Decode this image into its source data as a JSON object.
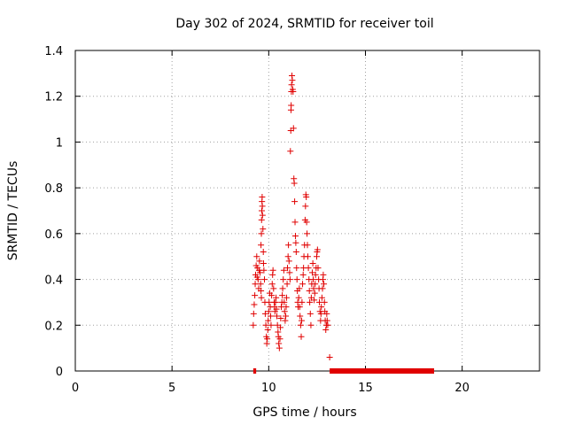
{
  "chart_data": {
    "type": "scatter",
    "title": "Day 302 of 2024, SRMTID for receiver toil",
    "xlabel": "GPS time / hours",
    "ylabel": "SRMTID / TECUs",
    "xlim": [
      0,
      24
    ],
    "ylim": [
      0,
      1.4
    ],
    "xticks": [
      0,
      5,
      10,
      15,
      20
    ],
    "yticks": [
      0,
      0.2,
      0.4,
      0.6,
      0.8,
      1,
      1.2,
      1.4
    ],
    "xtick_labels": [
      "0",
      "5",
      "10",
      "15",
      "20"
    ],
    "ytick_labels": [
      "0",
      "0.2",
      "0.4",
      "0.6",
      "0.8",
      "1",
      "1.2",
      "1.4"
    ],
    "grid": true,
    "marker": "+",
    "color": "#e00000",
    "series": [
      {
        "name": "SRMTID",
        "points": [
          [
            9.2,
            0.2
          ],
          [
            9.22,
            0.25
          ],
          [
            9.25,
            0.29
          ],
          [
            9.28,
            0.33
          ],
          [
            9.3,
            0.38
          ],
          [
            9.32,
            0.42
          ],
          [
            9.35,
            0.46
          ],
          [
            9.38,
            0.5
          ],
          [
            9.4,
            0.41
          ],
          [
            9.42,
            0.45
          ],
          [
            9.45,
            0.4
          ],
          [
            9.48,
            0.36
          ],
          [
            9.5,
            0.44
          ],
          [
            9.52,
            0.48
          ],
          [
            9.55,
            0.43
          ],
          [
            9.58,
            0.38
          ],
          [
            9.6,
            0.35
          ],
          [
            9.62,
            0.32
          ],
          [
            9.6,
            0.55
          ],
          [
            9.62,
            0.6
          ],
          [
            9.63,
            0.66
          ],
          [
            9.64,
            0.7
          ],
          [
            9.65,
            0.74
          ],
          [
            9.66,
            0.76
          ],
          [
            9.67,
            0.72
          ],
          [
            9.68,
            0.68
          ],
          [
            9.7,
            0.62
          ],
          [
            9.72,
            0.52
          ],
          [
            9.73,
            0.47
          ],
          [
            9.75,
            0.44
          ],
          [
            9.78,
            0.4
          ],
          [
            9.8,
            0.3
          ],
          [
            9.82,
            0.25
          ],
          [
            9.85,
            0.2
          ],
          [
            9.88,
            0.15
          ],
          [
            9.9,
            0.12
          ],
          [
            9.92,
            0.14
          ],
          [
            9.95,
            0.18
          ],
          [
            9.97,
            0.22
          ],
          [
            10.0,
            0.26
          ],
          [
            10.02,
            0.3
          ],
          [
            10.05,
            0.34
          ],
          [
            10.08,
            0.28
          ],
          [
            10.1,
            0.24
          ],
          [
            10.12,
            0.2
          ],
          [
            10.15,
            0.33
          ],
          [
            10.18,
            0.38
          ],
          [
            10.2,
            0.42
          ],
          [
            10.22,
            0.44
          ],
          [
            10.25,
            0.36
          ],
          [
            10.28,
            0.3
          ],
          [
            10.3,
            0.28
          ],
          [
            10.32,
            0.26
          ],
          [
            10.35,
            0.3
          ],
          [
            10.38,
            0.32
          ],
          [
            10.4,
            0.27
          ],
          [
            10.42,
            0.24
          ],
          [
            10.45,
            0.2
          ],
          [
            10.48,
            0.17
          ],
          [
            10.5,
            0.15
          ],
          [
            10.52,
            0.12
          ],
          [
            10.55,
            0.1
          ],
          [
            10.58,
            0.14
          ],
          [
            10.6,
            0.19
          ],
          [
            10.62,
            0.23
          ],
          [
            10.65,
            0.28
          ],
          [
            10.68,
            0.3
          ],
          [
            10.7,
            0.33
          ],
          [
            10.72,
            0.36
          ],
          [
            10.75,
            0.4
          ],
          [
            10.78,
            0.44
          ],
          [
            10.8,
            0.3
          ],
          [
            10.82,
            0.26
          ],
          [
            10.85,
            0.22
          ],
          [
            10.88,
            0.24
          ],
          [
            10.9,
            0.28
          ],
          [
            10.92,
            0.32
          ],
          [
            10.95,
            0.38
          ],
          [
            10.97,
            0.45
          ],
          [
            11.0,
            0.5
          ],
          [
            11.02,
            0.55
          ],
          [
            11.05,
            0.48
          ],
          [
            11.08,
            0.43
          ],
          [
            11.1,
            0.4
          ],
          [
            11.12,
            0.96
          ],
          [
            11.14,
            1.05
          ],
          [
            11.15,
            1.14
          ],
          [
            11.16,
            1.16
          ],
          [
            11.17,
            1.22
          ],
          [
            11.18,
            1.25
          ],
          [
            11.2,
            1.29
          ],
          [
            11.22,
            1.27
          ],
          [
            11.24,
            1.23
          ],
          [
            11.26,
            1.22
          ],
          [
            11.28,
            1.06
          ],
          [
            11.3,
            0.84
          ],
          [
            11.32,
            0.82
          ],
          [
            11.34,
            0.74
          ],
          [
            11.36,
            0.65
          ],
          [
            11.38,
            0.59
          ],
          [
            11.4,
            0.56
          ],
          [
            11.42,
            0.52
          ],
          [
            11.44,
            0.45
          ],
          [
            11.46,
            0.4
          ],
          [
            11.48,
            0.35
          ],
          [
            11.5,
            0.3
          ],
          [
            11.52,
            0.28
          ],
          [
            11.55,
            0.32
          ],
          [
            11.58,
            0.36
          ],
          [
            11.6,
            0.28
          ],
          [
            11.62,
            0.24
          ],
          [
            11.65,
            0.2
          ],
          [
            11.68,
            0.15
          ],
          [
            11.7,
            0.22
          ],
          [
            11.72,
            0.3
          ],
          [
            11.75,
            0.38
          ],
          [
            11.78,
            0.42
          ],
          [
            11.8,
            0.45
          ],
          [
            11.82,
            0.5
          ],
          [
            11.85,
            0.55
          ],
          [
            11.88,
            0.66
          ],
          [
            11.9,
            0.72
          ],
          [
            11.92,
            0.77
          ],
          [
            11.94,
            0.76
          ],
          [
            11.96,
            0.65
          ],
          [
            11.98,
            0.6
          ],
          [
            12.0,
            0.55
          ],
          [
            12.02,
            0.5
          ],
          [
            12.05,
            0.45
          ],
          [
            12.08,
            0.4
          ],
          [
            12.1,
            0.35
          ],
          [
            12.12,
            0.3
          ],
          [
            12.15,
            0.25
          ],
          [
            12.18,
            0.2
          ],
          [
            12.2,
            0.32
          ],
          [
            12.22,
            0.38
          ],
          [
            12.25,
            0.43
          ],
          [
            12.28,
            0.47
          ],
          [
            12.3,
            0.4
          ],
          [
            12.32,
            0.36
          ],
          [
            12.35,
            0.31
          ],
          [
            12.38,
            0.34
          ],
          [
            12.4,
            0.38
          ],
          [
            12.42,
            0.42
          ],
          [
            12.45,
            0.45
          ],
          [
            12.48,
            0.5
          ],
          [
            12.5,
            0.52
          ],
          [
            12.52,
            0.53
          ],
          [
            12.55,
            0.45
          ],
          [
            12.58,
            0.4
          ],
          [
            12.6,
            0.36
          ],
          [
            12.62,
            0.3
          ],
          [
            12.65,
            0.26
          ],
          [
            12.68,
            0.22
          ],
          [
            12.7,
            0.25
          ],
          [
            12.72,
            0.28
          ],
          [
            12.75,
            0.32
          ],
          [
            12.78,
            0.36
          ],
          [
            12.8,
            0.4
          ],
          [
            12.82,
            0.42
          ],
          [
            12.85,
            0.38
          ],
          [
            12.88,
            0.3
          ],
          [
            12.9,
            0.26
          ],
          [
            12.92,
            0.22
          ],
          [
            12.95,
            0.18
          ],
          [
            12.98,
            0.2
          ],
          [
            13.0,
            0.25
          ],
          [
            13.02,
            0.22
          ],
          [
            13.05,
            0.2
          ],
          [
            13.15,
            0.06
          ]
        ]
      }
    ],
    "coverage_segments": [
      [
        9.2,
        9.35
      ],
      [
        13.15,
        18.55
      ]
    ]
  }
}
